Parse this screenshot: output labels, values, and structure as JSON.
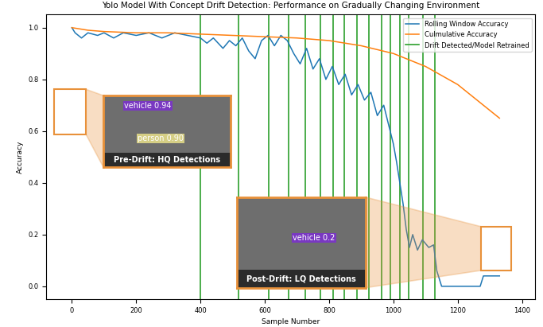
{
  "chart_data": {
    "type": "line",
    "title": "Yolo Model With Concept Drift Detection: Performance on Gradually Changing Environment",
    "x_label": "Sample Number",
    "y_label": "Accuracy",
    "xlim": [
      -80,
      1440
    ],
    "xticks": [
      0,
      200,
      400,
      600,
      800,
      1000,
      1200,
      1400
    ],
    "ylim": [
      -0.05,
      1.05
    ],
    "yticks": [
      0.0,
      0.2,
      0.4,
      0.6,
      0.8,
      1.0
    ],
    "grid": false,
    "legend": "upper right",
    "series": [
      {
        "name": "Rolling Window Accuracy",
        "color": "#1f77b4",
        "type": "line",
        "x": [
          0,
          10,
          30,
          50,
          80,
          100,
          130,
          160,
          200,
          240,
          280,
          320,
          360,
          400,
          420,
          440,
          470,
          490,
          510,
          530,
          550,
          570,
          590,
          610,
          630,
          650,
          670,
          690,
          710,
          730,
          750,
          770,
          790,
          810,
          830,
          850,
          870,
          890,
          910,
          930,
          950,
          970,
          990,
          1000,
          1010,
          1020,
          1030,
          1040,
          1050,
          1060,
          1075,
          1090,
          1110,
          1125,
          1135,
          1150,
          1270,
          1280,
          1330
        ],
        "values": [
          1.0,
          0.98,
          0.96,
          0.98,
          0.97,
          0.98,
          0.96,
          0.98,
          0.97,
          0.98,
          0.96,
          0.98,
          0.97,
          0.96,
          0.94,
          0.96,
          0.92,
          0.95,
          0.93,
          0.96,
          0.91,
          0.88,
          0.95,
          0.97,
          0.93,
          0.97,
          0.95,
          0.9,
          0.86,
          0.92,
          0.84,
          0.88,
          0.8,
          0.85,
          0.78,
          0.82,
          0.74,
          0.78,
          0.72,
          0.75,
          0.66,
          0.7,
          0.6,
          0.55,
          0.48,
          0.4,
          0.32,
          0.22,
          0.15,
          0.2,
          0.14,
          0.18,
          0.15,
          0.16,
          0.06,
          0.0,
          0.0,
          0.04,
          0.04
        ]
      },
      {
        "name": "Culmulative Accuracy",
        "color": "#ff7f0e",
        "type": "line",
        "x": [
          0,
          50,
          100,
          200,
          300,
          400,
          500,
          600,
          700,
          800,
          900,
          1000,
          1100,
          1200,
          1300,
          1330
        ],
        "values": [
          1.0,
          0.99,
          0.985,
          0.98,
          0.98,
          0.975,
          0.97,
          0.965,
          0.96,
          0.95,
          0.93,
          0.9,
          0.85,
          0.78,
          0.68,
          0.65
        ]
      },
      {
        "name": "Drift Detected/Model Retrained",
        "color": "#2ca02c",
        "type": "vline",
        "x": [
          400,
          518,
          612,
          674,
          726,
          773,
          813,
          848,
          887,
          924,
          964,
          991,
          1021,
          1048,
          1093,
          1130
        ]
      }
    ],
    "annotations": [
      {
        "text": "Pre-Drift: HQ Detections",
        "detections": [
          "vehicle 0.94",
          "person 0.90"
        ]
      },
      {
        "text": "Post-Drift: LQ Detections",
        "detections": [
          "vehicle 0.2"
        ]
      }
    ]
  }
}
